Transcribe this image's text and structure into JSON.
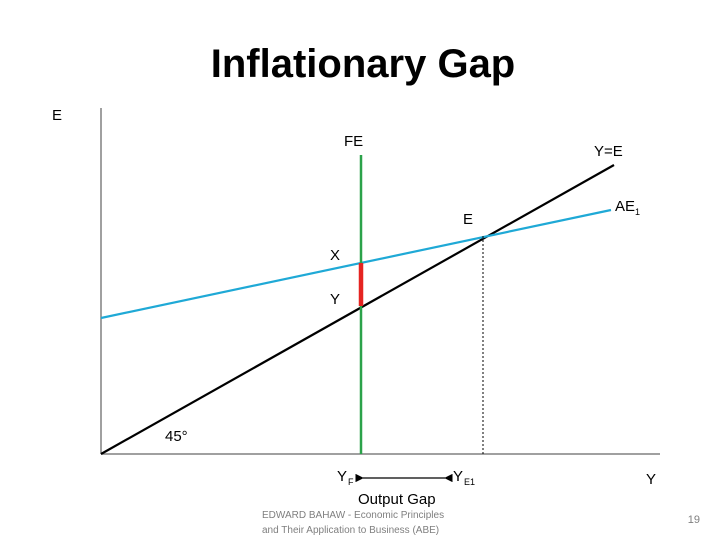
{
  "slide": {
    "title": "Inflationary Gap",
    "footer_line1": "EDWARD BAHAW - Economic Principles",
    "footer_line2": "and Their Application to Business (ABE)",
    "page_number": "19"
  },
  "diagram": {
    "axis_y_label": "E",
    "axis_x_label": "Y",
    "line_ye_label": "Y=E",
    "line_ae_label": "AE",
    "line_ae_sub": "1",
    "line_fe_label": "FE",
    "point_e_label": "E",
    "point_x_label": "X",
    "point_y_label": "Y",
    "angle_label": "45°",
    "tick_yf_label": "Y",
    "tick_yf_sub": "F",
    "tick_ye1_label": "Y",
    "tick_ye1_sub": "E1",
    "gap_label": "Output Gap",
    "colors": {
      "ye_line": "#000000",
      "ae_line": "#1fa9d6",
      "fe_line": "#2ba24a",
      "gap_segment": "#e52421",
      "axes": "#808080"
    }
  }
}
